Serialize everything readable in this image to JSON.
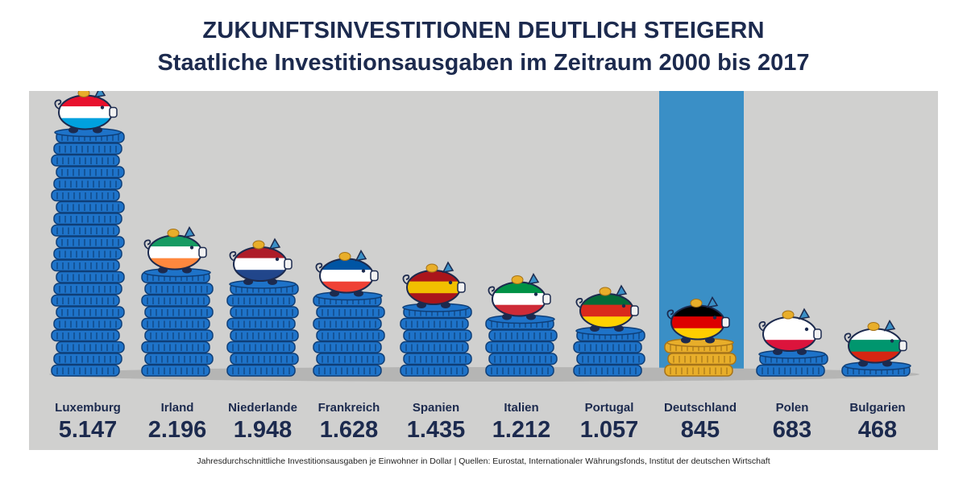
{
  "header": {
    "title": "ZUKUNFTSINVESTITIONEN DEUTLICH STEIGERN",
    "subtitle": "Staatliche Investitionsausgaben im Zeitraum 2000 bis 2017"
  },
  "footer": {
    "note": "Jahresdurchschnittliche Investitionsausgaben je Einwohner in Dollar  |  Quellen: Eurostat, Internationaler Währungsfonds, Institut der deutschen Wirtschaft"
  },
  "colors": {
    "background_panel": "#d0d0cf",
    "coin_blue": "#1e73c9",
    "coin_dark": "#0f3f78",
    "coin_gold": "#e8ae2a",
    "highlight_band": "#3a8fc6",
    "text_dark": "#1c2a4e"
  },
  "chart_data": {
    "type": "bar",
    "title": "Staatliche Investitionsausgaben im Zeitraum 2000 bis 2017",
    "unit": "Dollar je Einwohner",
    "categories": [
      "Luxemburg",
      "Irland",
      "Niederlande",
      "Frankreich",
      "Spanien",
      "Italien",
      "Portugal",
      "Deutschland",
      "Polen",
      "Bulgarien"
    ],
    "values": [
      5147,
      2196,
      1948,
      1628,
      1435,
      1212,
      1057,
      845,
      683,
      468
    ],
    "value_labels": [
      "5.147",
      "2.196",
      "1.948",
      "1.628",
      "1.435",
      "1.212",
      "1.057",
      "845",
      "683",
      "468"
    ],
    "coin_counts": [
      21,
      9,
      8,
      7,
      6,
      5,
      4,
      3,
      2,
      1
    ],
    "highlight": "Deutschland",
    "flags": [
      [
        "#e8112d",
        "#ffffff",
        "#00a1de"
      ],
      [
        "#169b62",
        "#ffffff",
        "#ff883e"
      ],
      [
        "#ae1c28",
        "#ffffff",
        "#21468b"
      ],
      [
        "#0055a4",
        "#ffffff",
        "#ef4135"
      ],
      [
        "#aa151b",
        "#f1bf00",
        "#aa151b"
      ],
      [
        "#009246",
        "#ffffff",
        "#ce2b37"
      ],
      [
        "#046a38",
        "#da291c",
        "#ffd100"
      ],
      [
        "#000000",
        "#dd0000",
        "#ffce00"
      ],
      [
        "#ffffff",
        "#ffffff",
        "#dc143c"
      ],
      [
        "#ffffff",
        "#00966e",
        "#d62612"
      ]
    ]
  }
}
